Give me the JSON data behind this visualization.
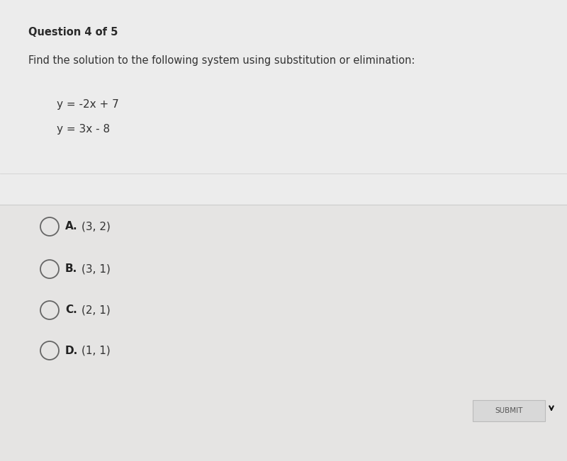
{
  "background_color": "#e0dedd",
  "card_top_color": "#ebebeb",
  "card_bottom_color": "#e4e3e2",
  "divider_color": "#cccccc",
  "question_header": "Question 4 of 5",
  "question_text": "Find the solution to the following system using substitution or elimination:",
  "equation1": "y = -2x + 7",
  "equation2": "y = 3x - 8",
  "options": [
    {
      "label": "A.",
      "text": "(3, 2)"
    },
    {
      "label": "B.",
      "text": "(3, 1)"
    },
    {
      "label": "C.",
      "text": "(2, 1)"
    },
    {
      "label": "D.",
      "text": "(1, 1)"
    }
  ],
  "submit_button_text": "SUBMIT",
  "submit_button_color": "#d8d8d8",
  "header_fontsize": 10.5,
  "question_fontsize": 10.5,
  "equation_fontsize": 11,
  "option_fontsize": 11,
  "option_label_fontsize": 11
}
